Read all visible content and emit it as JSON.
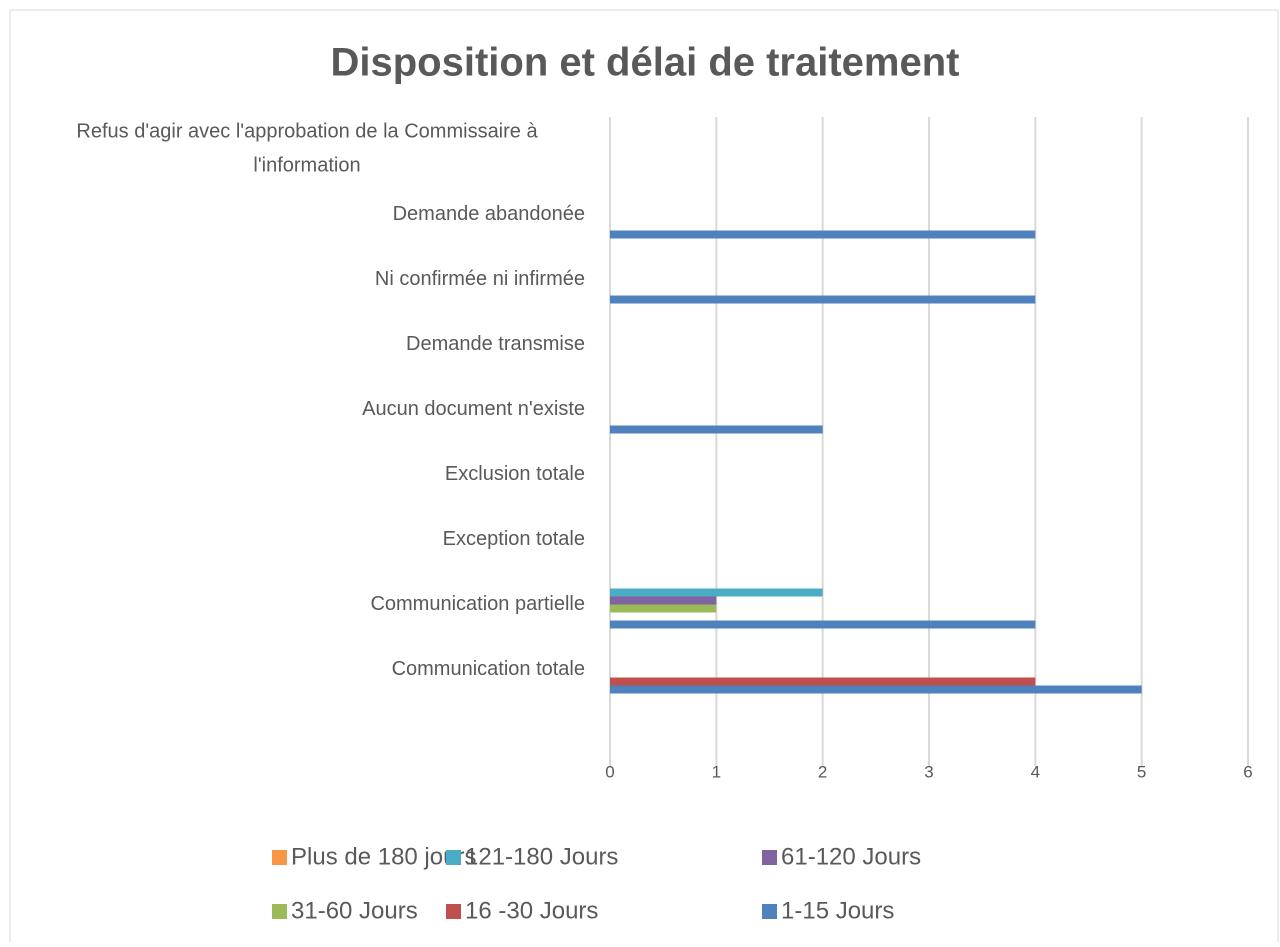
{
  "chart_data": {
    "type": "hbar",
    "title": "Disposition et délai de traitement",
    "categories": [
      "Refus d'agir avec l'approbation de la Commissaire à l'information",
      "Demande abandonée",
      "Ni confirmée ni infirmée",
      "Demande transmise",
      "Aucun document n'existe",
      "Exclusion totale",
      "Exception totale",
      "Communication partielle",
      "Communication totale",
      null
    ],
    "series": [
      {
        "name": "1-15 Jours",
        "color": "#4f81bd",
        "values": [
          0,
          4,
          4,
          0,
          2,
          0,
          0,
          4,
          5,
          null
        ]
      },
      {
        "name": "16 -30 Jours",
        "color": "#c0504d",
        "values": [
          0,
          0,
          0,
          0,
          0,
          0,
          0,
          0,
          4,
          null
        ]
      },
      {
        "name": "31-60 Jours",
        "color": "#9bbb59",
        "values": [
          0,
          0,
          0,
          0,
          0,
          0,
          0,
          1,
          0,
          null
        ]
      },
      {
        "name": "61-120 Jours",
        "color": "#8064a2",
        "values": [
          0,
          0,
          0,
          0,
          0,
          0,
          0,
          1,
          0,
          null
        ]
      },
      {
        "name": "121-180 Jours",
        "color": "#4bacc6",
        "values": [
          0,
          0,
          0,
          0,
          0,
          0,
          0,
          2,
          0,
          null
        ]
      },
      {
        "name": "Plus de 180 jours",
        "color": "#f79646",
        "values": [
          0,
          0,
          0,
          0,
          0,
          0,
          0,
          0,
          0,
          null
        ]
      }
    ],
    "xlim": [
      0,
      6
    ],
    "xticks": [
      0,
      1,
      2,
      3,
      4,
      5,
      6
    ],
    "grid": true,
    "legend": "bottom"
  }
}
